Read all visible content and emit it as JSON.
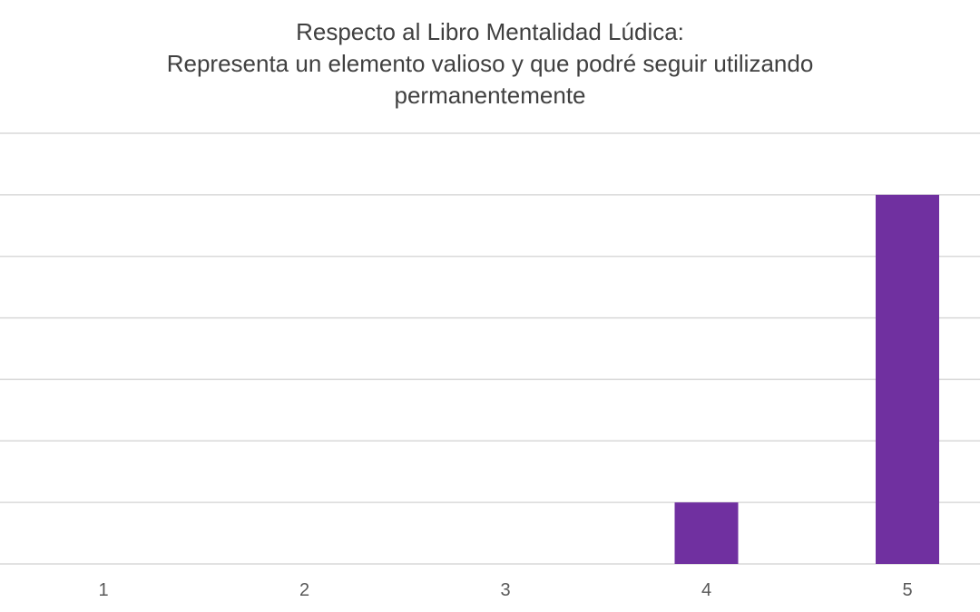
{
  "chart_data": {
    "type": "bar",
    "title_lines": [
      "Respecto al Libro Mentalidad Lúdica:",
      "Representa un elemento valioso y que podré seguir utilizando",
      "permanentemente"
    ],
    "categories": [
      "1",
      "2",
      "3",
      "4",
      "5"
    ],
    "values": [
      0,
      0,
      0,
      1,
      6
    ],
    "ylim": [
      0,
      7
    ],
    "y_gridline_step": 1,
    "grid": true,
    "legend": "none",
    "bar_color": "#7030a0",
    "gridline_color": "#d9d9d9",
    "text_color": "#595959"
  }
}
